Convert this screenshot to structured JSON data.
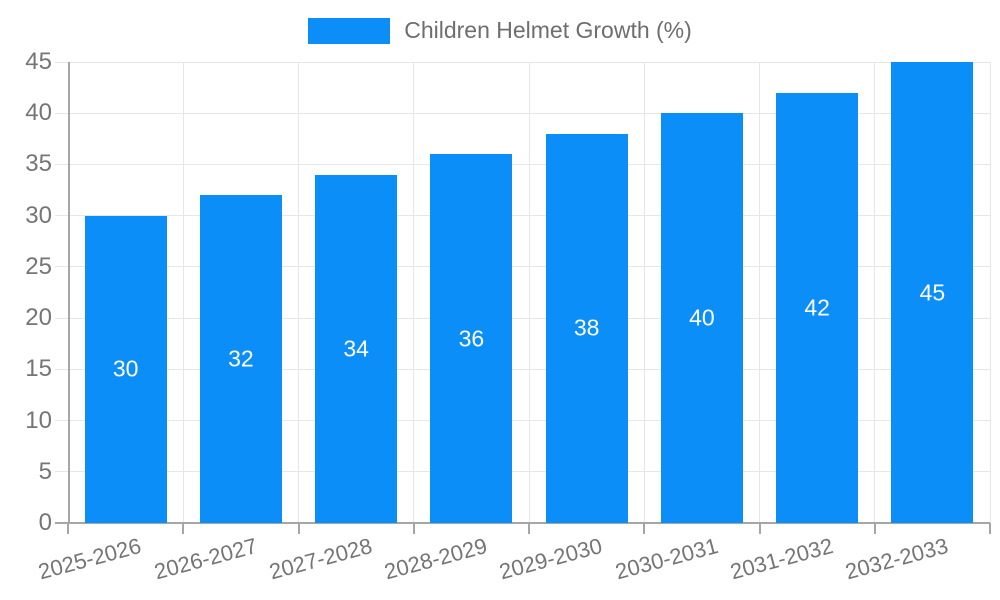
{
  "chart_data": {
    "type": "bar",
    "title": "Children Helmet Growth (%)",
    "categories": [
      "2025-2026",
      "2026-2027",
      "2027-2028",
      "2028-2029",
      "2029-2030",
      "2030-2031",
      "2031-2032",
      "2032-2033"
    ],
    "values": [
      30,
      32,
      34,
      36,
      38,
      40,
      42,
      45
    ],
    "bar_value_labels": [
      "30",
      "32",
      "34",
      "36",
      "38",
      "40",
      "42",
      "45"
    ],
    "xlabel": "",
    "ylabel": "",
    "ylim": [
      0,
      45
    ],
    "yticks": [
      0,
      5,
      10,
      15,
      20,
      25,
      30,
      35,
      40,
      45
    ],
    "grid": true,
    "legend_position": "top",
    "colors": {
      "bar": "#0c8ef8",
      "grid": "#e6e6e6",
      "axis": "#a6a6a6",
      "tick_text": "#757575",
      "legend_text": "#6e6e6e",
      "bar_value_text": "#ffffff"
    }
  }
}
